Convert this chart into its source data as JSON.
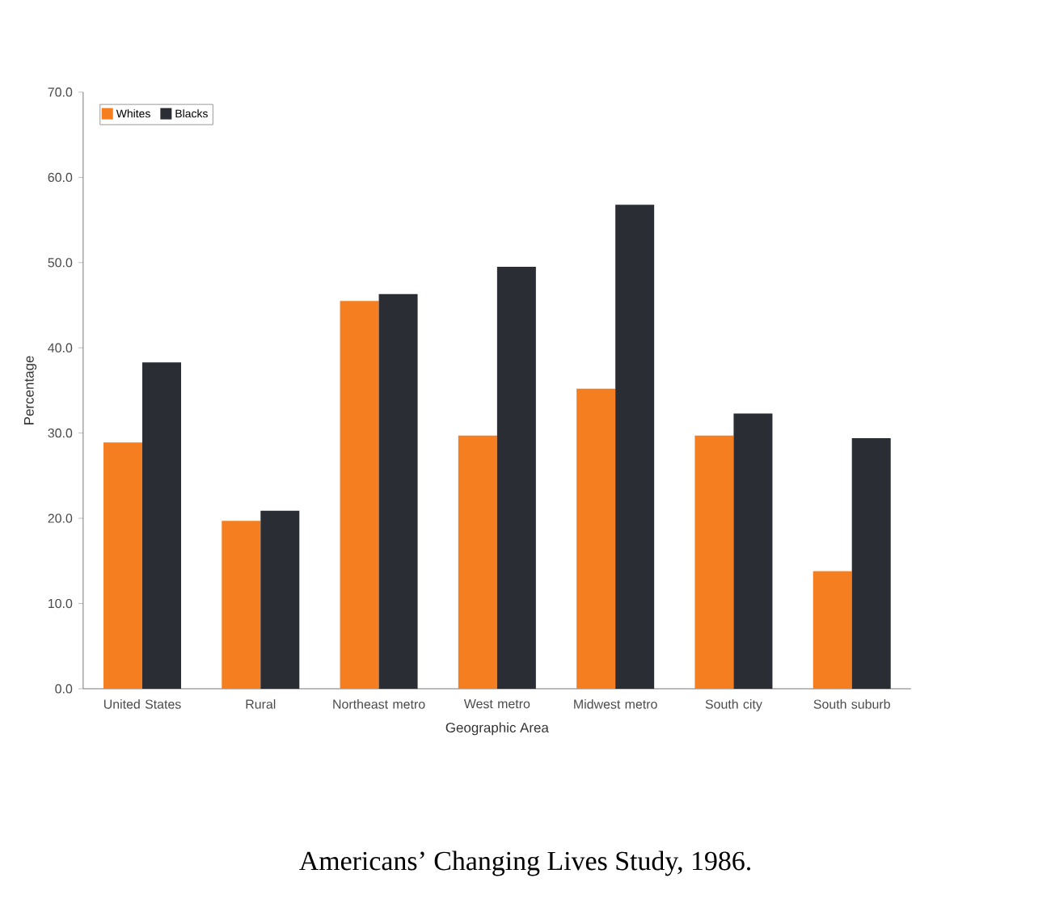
{
  "chart_data": {
    "type": "bar",
    "xlabel": "Geographic Area",
    "ylabel": "Percentage",
    "categories": [
      "United States",
      "Rural",
      "Northeast metro",
      "West metro",
      "Midwest metro",
      "South city",
      "South suburb"
    ],
    "series": [
      {
        "name": "Whites",
        "color": "#f57f20",
        "values": [
          28.9,
          19.7,
          45.5,
          29.7,
          35.2,
          29.7,
          13.8
        ]
      },
      {
        "name": "Blacks",
        "color": "#2a2d33",
        "values": [
          38.3,
          20.9,
          46.3,
          49.5,
          56.8,
          32.3,
          29.4
        ]
      }
    ],
    "ylim": [
      0,
      70
    ],
    "yticks": [
      {
        "value": 0,
        "label": "0.0"
      },
      {
        "value": 10,
        "label": "10.0"
      },
      {
        "value": 20,
        "label": "20.0"
      },
      {
        "value": 30,
        "label": "30.0"
      },
      {
        "value": 40,
        "label": "40.0"
      },
      {
        "value": 50,
        "label": "50.0"
      },
      {
        "value": 60,
        "label": "60.0"
      },
      {
        "value": 70,
        "label": "70.0"
      }
    ],
    "grid": false,
    "legend": "top left",
    "annotations": [
      "Americans’ Changing Lives Study, 1986."
    ]
  }
}
